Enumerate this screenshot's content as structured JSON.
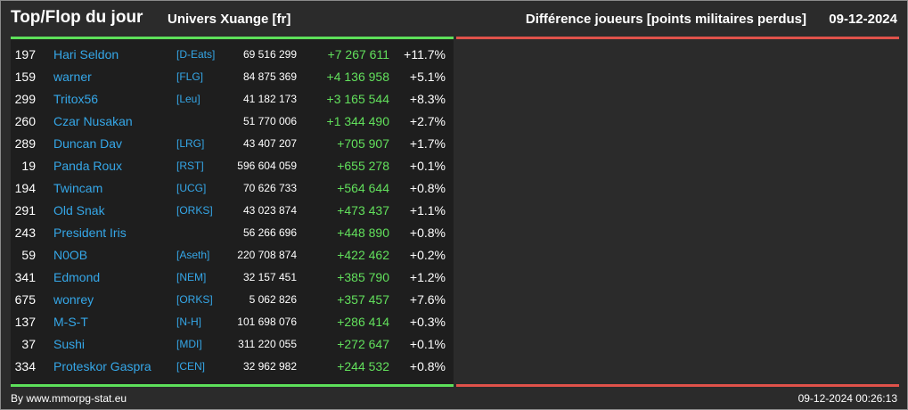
{
  "header": {
    "title": "Top/Flop du jour",
    "universe": "Univers Xuange [fr]",
    "subtitle": "Différence joueurs [points militaires perdus]",
    "date": "09-12-2024"
  },
  "colors": {
    "top_accent": "#5de05a",
    "flop_accent": "#e0524a",
    "name_link": "#35a7e8",
    "positive_diff": "#62e05c"
  },
  "top_rows": [
    {
      "rank": "197",
      "name": "Hari Seldon",
      "ally": "[D-Eats]",
      "points": "69 516 299",
      "diff": "+7 267 611",
      "pct": "+11.7%"
    },
    {
      "rank": "159",
      "name": "warner",
      "ally": "[FLG]",
      "points": "84 875 369",
      "diff": "+4 136 958",
      "pct": "+5.1%"
    },
    {
      "rank": "299",
      "name": "Tritox56",
      "ally": "[Leu]",
      "points": "41 182 173",
      "diff": "+3 165 544",
      "pct": "+8.3%"
    },
    {
      "rank": "260",
      "name": "Czar Nusakan",
      "ally": "",
      "points": "51 770 006",
      "diff": "+1 344 490",
      "pct": "+2.7%"
    },
    {
      "rank": "289",
      "name": "Duncan Dav",
      "ally": "[LRG]",
      "points": "43 407 207",
      "diff": "+705 907",
      "pct": "+1.7%"
    },
    {
      "rank": "19",
      "name": "Panda Roux",
      "ally": "[RST]",
      "points": "596 604 059",
      "diff": "+655 278",
      "pct": "+0.1%"
    },
    {
      "rank": "194",
      "name": "Twincam",
      "ally": "[UCG]",
      "points": "70 626 733",
      "diff": "+564 644",
      "pct": "+0.8%"
    },
    {
      "rank": "291",
      "name": "Old Snak",
      "ally": "[ORKS]",
      "points": "43 023 874",
      "diff": "+473 437",
      "pct": "+1.1%"
    },
    {
      "rank": "243",
      "name": "President Iris",
      "ally": "",
      "points": "56 266 696",
      "diff": "+448 890",
      "pct": "+0.8%"
    },
    {
      "rank": "59",
      "name": "N0OB",
      "ally": "[Aseth]",
      "points": "220 708 874",
      "diff": "+422 462",
      "pct": "+0.2%"
    },
    {
      "rank": "341",
      "name": "Edmond",
      "ally": "[NEM]",
      "points": "32 157 451",
      "diff": "+385 790",
      "pct": "+1.2%"
    },
    {
      "rank": "675",
      "name": "wonrey",
      "ally": "[ORKS]",
      "points": "5 062 826",
      "diff": "+357 457",
      "pct": "+7.6%"
    },
    {
      "rank": "137",
      "name": "M-S-T",
      "ally": "[N-H]",
      "points": "101 698 076",
      "diff": "+286 414",
      "pct": "+0.3%"
    },
    {
      "rank": "37",
      "name": "Sushi",
      "ally": "[MDI]",
      "points": "311 220 055",
      "diff": "+272 647",
      "pct": "+0.1%"
    },
    {
      "rank": "334",
      "name": "Proteskor Gaspra",
      "ally": "[CEN]",
      "points": "32 962 982",
      "diff": "+244 532",
      "pct": "+0.8%"
    }
  ],
  "flop_rows": [],
  "footer": {
    "credit": "By www.mmorpg-stat.eu",
    "timestamp": "09-12-2024 00:26:13"
  }
}
